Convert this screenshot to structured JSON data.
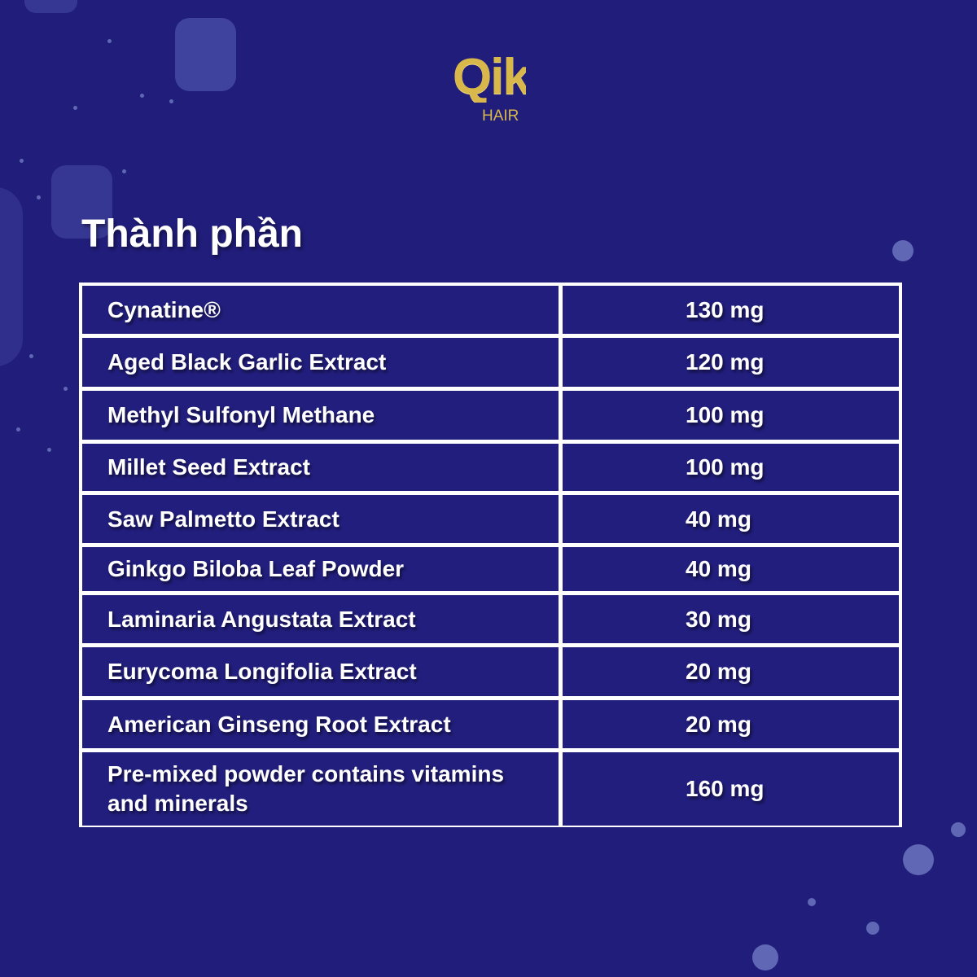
{
  "brand": {
    "logo_text": "Qik",
    "logo_subtext": "HAIR",
    "logo_color": "#d8b84a"
  },
  "title": "Thành phần",
  "colors": {
    "background": "#211d7b",
    "border": "#ffffff",
    "text": "#ffffff"
  },
  "ingredients": [
    {
      "name": "Cynatine®",
      "amount": "130 mg"
    },
    {
      "name": "Aged Black Garlic Extract",
      "amount": "120 mg"
    },
    {
      "name": "Methyl Sulfonyl Methane",
      "amount": "100 mg"
    },
    {
      "name": "Millet Seed Extract",
      "amount": "100 mg"
    },
    {
      "name": "Saw Palmetto Extract",
      "amount": "40 mg"
    },
    {
      "name": "Ginkgo Biloba Leaf Powder",
      "amount": "40 mg"
    },
    {
      "name": "Laminaria Angustata Extract",
      "amount": "30 mg"
    },
    {
      "name": "Eurycoma Longifolia Extract",
      "amount": "20 mg"
    },
    {
      "name": "American Ginseng Root Extract",
      "amount": "20 mg"
    },
    {
      "name": "Pre-mixed powder contains vitamins and minerals",
      "amount": "160 mg"
    }
  ]
}
